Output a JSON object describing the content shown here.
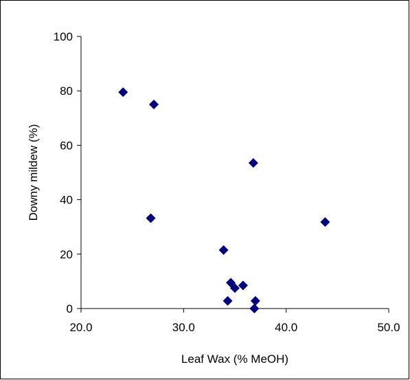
{
  "chart_data": {
    "type": "scatter",
    "title": "",
    "xlabel": "Leaf Wax (% MeOH)",
    "ylabel": "Downy mildew (%)",
    "xlim": [
      20.0,
      50.0
    ],
    "ylim": [
      0,
      100
    ],
    "x_ticks": [
      "20.0",
      "30.0",
      "40.0",
      "50.0"
    ],
    "y_ticks": [
      "0",
      "20",
      "40",
      "60",
      "80",
      "100"
    ],
    "grid": false,
    "legend": "none",
    "marker": "diamond",
    "marker_color": "#000080",
    "series": [
      {
        "points": [
          {
            "x": 24.1,
            "y": 79.5
          },
          {
            "x": 27.1,
            "y": 75.0
          },
          {
            "x": 26.8,
            "y": 33.2
          },
          {
            "x": 36.8,
            "y": 53.5
          },
          {
            "x": 43.8,
            "y": 31.8
          },
          {
            "x": 33.9,
            "y": 21.5
          },
          {
            "x": 34.6,
            "y": 9.5
          },
          {
            "x": 35.0,
            "y": 7.5
          },
          {
            "x": 35.8,
            "y": 8.5
          },
          {
            "x": 34.3,
            "y": 2.8
          },
          {
            "x": 37.0,
            "y": 2.8
          },
          {
            "x": 36.9,
            "y": 0.0
          }
        ]
      }
    ]
  }
}
